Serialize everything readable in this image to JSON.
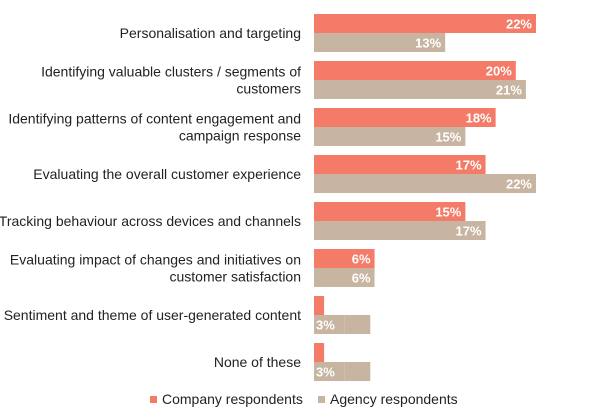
{
  "chart_data": {
    "type": "bar",
    "orientation": "horizontal",
    "categories": [
      [
        "Personalisation and targeting"
      ],
      [
        "Identifying valuable clusters / segments of",
        "customers"
      ],
      [
        "Identifying patterns of content engagement and",
        "campaign response"
      ],
      [
        "Evaluating the overall customer experience"
      ],
      [
        "Tracking behaviour across devices and channels"
      ],
      [
        "Evaluating impact of changes and initiatives on",
        "customer satisfaction"
      ],
      [
        "Sentiment and theme of user-generated content"
      ],
      [
        "None of these"
      ]
    ],
    "series": [
      {
        "name": "Company respondents",
        "color": "#F47B67",
        "values": [
          22,
          20,
          18,
          17,
          15,
          6,
          1,
          1
        ]
      },
      {
        "name": "Agency respondents",
        "color": "#C8B5A1",
        "values": [
          13,
          21,
          15,
          22,
          17,
          6,
          3,
          3
        ]
      }
    ],
    "value_suffix": "%",
    "legend_position": "bottom",
    "grid": false,
    "xlim": [
      0,
      22
    ]
  }
}
